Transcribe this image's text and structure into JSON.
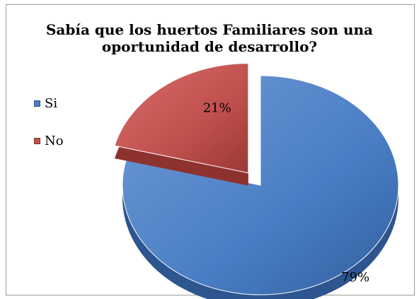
{
  "chart_data": {
    "type": "pie",
    "title_lines": [
      "Sabía que los huertos Familiares son una",
      "oportunidad de desarrollo?"
    ],
    "categories": [
      "Si",
      "No"
    ],
    "values": [
      79,
      21
    ],
    "value_labels": [
      "79%",
      "21%"
    ],
    "colors": [
      "#4a7ec4",
      "#c0504d"
    ],
    "legend_position": "left",
    "exploded_slice": "No",
    "style": "3d"
  }
}
